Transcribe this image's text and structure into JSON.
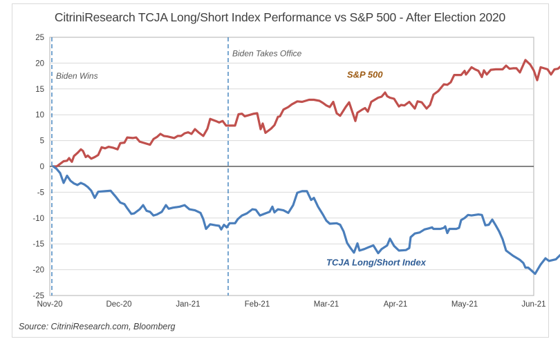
{
  "chart_data": {
    "type": "line",
    "title": "CitriniResearch TCJA Long/Short Index Performance vs S&P 500 - After Election 2020",
    "xlabel": "",
    "ylabel": "",
    "ylim": [
      -25,
      25
    ],
    "yticks": [
      25,
      20,
      15,
      10,
      5,
      0,
      -5,
      -10,
      -15,
      -20,
      -25
    ],
    "x_unit": "months since Nov-20",
    "xlim": [
      0,
      7
    ],
    "xticks": [
      {
        "value": 0,
        "label": "Nov-20"
      },
      {
        "value": 1,
        "label": "Dec-20"
      },
      {
        "value": 2,
        "label": "Jan-21"
      },
      {
        "value": 3,
        "label": "Feb-21"
      },
      {
        "value": 4,
        "label": "Mar-21"
      },
      {
        "value": 5,
        "label": "Apr-21"
      },
      {
        "value": 6,
        "label": "May-21"
      },
      {
        "value": 7,
        "label": "Jun-21"
      }
    ],
    "grid": true,
    "legend": "inline labels",
    "annotations": [
      {
        "x": 0.03,
        "label": "Biden Wins",
        "style": "dashed-vertical"
      },
      {
        "x": 2.58,
        "label": "Biden Takes Office",
        "style": "dashed-vertical"
      }
    ],
    "series": [
      {
        "name": "S&P 500",
        "color": "#c0504d",
        "label_color": "#9c5a12",
        "label_pos": {
          "x": 4.3,
          "y": 17.2
        },
        "points": [
          [
            0.05,
            0
          ],
          [
            0.1,
            0
          ],
          [
            0.15,
            0.5
          ],
          [
            0.2,
            1
          ],
          [
            0.25,
            1.1
          ],
          [
            0.28,
            1.6
          ],
          [
            0.3,
            1.2
          ],
          [
            0.32,
            0.9
          ],
          [
            0.35,
            2
          ],
          [
            0.4,
            2.6
          ],
          [
            0.45,
            3.3
          ],
          [
            0.48,
            3
          ],
          [
            0.52,
            1.8
          ],
          [
            0.55,
            2.1
          ],
          [
            0.6,
            1.5
          ],
          [
            0.65,
            1.8
          ],
          [
            0.7,
            2.2
          ],
          [
            0.75,
            3.7
          ],
          [
            0.8,
            3.5
          ],
          [
            0.85,
            3.8
          ],
          [
            0.92,
            3.6
          ],
          [
            0.98,
            3.3
          ],
          [
            1.02,
            4.5
          ],
          [
            1.08,
            4.6
          ],
          [
            1.12,
            5.6
          ],
          [
            1.2,
            5.5
          ],
          [
            1.25,
            5.6
          ],
          [
            1.3,
            4.8
          ],
          [
            1.35,
            4.6
          ],
          [
            1.45,
            4.2
          ],
          [
            1.5,
            5.3
          ],
          [
            1.55,
            5.7
          ],
          [
            1.6,
            6.3
          ],
          [
            1.65,
            5.9
          ],
          [
            1.7,
            5.8
          ],
          [
            1.8,
            5.5
          ],
          [
            1.85,
            5.9
          ],
          [
            1.9,
            5.9
          ],
          [
            1.95,
            6.4
          ],
          [
            2.0,
            6.6
          ],
          [
            2.05,
            6.3
          ],
          [
            2.1,
            7.2
          ],
          [
            2.15,
            6.6
          ],
          [
            2.22,
            5.9
          ],
          [
            2.28,
            7.3
          ],
          [
            2.32,
            9.2
          ],
          [
            2.4,
            8.8
          ],
          [
            2.45,
            8.5
          ],
          [
            2.5,
            8.8
          ],
          [
            2.55,
            7.9
          ],
          [
            2.62,
            7.9
          ],
          [
            2.68,
            7.9
          ],
          [
            2.73,
            10.1
          ],
          [
            2.78,
            10.2
          ],
          [
            2.82,
            9.7
          ],
          [
            2.9,
            10
          ],
          [
            2.95,
            10.2
          ],
          [
            3.0,
            10.3
          ],
          [
            3.05,
            7.2
          ],
          [
            3.08,
            8.3
          ],
          [
            3.12,
            6.5
          ],
          [
            3.2,
            7.3
          ],
          [
            3.25,
            8
          ],
          [
            3.3,
            9.6
          ],
          [
            3.33,
            9.7
          ],
          [
            3.38,
            11
          ],
          [
            3.45,
            11.5
          ],
          [
            3.5,
            12
          ],
          [
            3.58,
            12.6
          ],
          [
            3.65,
            12.5
          ],
          [
            3.7,
            12.7
          ],
          [
            3.75,
            12.9
          ],
          [
            3.82,
            12.9
          ],
          [
            3.9,
            12.7
          ],
          [
            3.95,
            12.3
          ],
          [
            4.0,
            11.8
          ],
          [
            4.05,
            11.5
          ],
          [
            4.1,
            12.5
          ],
          [
            4.15,
            10.3
          ],
          [
            4.2,
            9.8
          ],
          [
            4.28,
            11.5
          ],
          [
            4.33,
            12.4
          ],
          [
            4.38,
            10.4
          ],
          [
            4.42,
            8.8
          ],
          [
            4.45,
            10.4
          ],
          [
            4.52,
            11
          ],
          [
            4.56,
            11.3
          ],
          [
            4.6,
            10.6
          ],
          [
            4.65,
            12.5
          ],
          [
            4.7,
            12.9
          ],
          [
            4.75,
            13.3
          ],
          [
            4.8,
            13.5
          ],
          [
            4.85,
            14.3
          ],
          [
            4.88,
            13.6
          ],
          [
            4.92,
            13.3
          ],
          [
            4.98,
            13.1
          ],
          [
            5.05,
            11.6
          ],
          [
            5.08,
            11.9
          ],
          [
            5.13,
            11.8
          ],
          [
            5.2,
            12.5
          ],
          [
            5.28,
            11.2
          ],
          [
            5.32,
            12.6
          ],
          [
            5.38,
            12.4
          ],
          [
            5.45,
            11.2
          ],
          [
            5.5,
            11.9
          ],
          [
            5.55,
            13.9
          ],
          [
            5.62,
            14.6
          ],
          [
            5.7,
            15.9
          ],
          [
            5.75,
            15.8
          ],
          [
            5.8,
            16.3
          ],
          [
            5.85,
            17.7
          ],
          [
            5.95,
            17.7
          ],
          [
            6.0,
            18.5
          ],
          [
            6.02,
            17.8
          ],
          [
            6.05,
            18.3
          ],
          [
            6.1,
            19.2
          ],
          [
            6.15,
            18.8
          ],
          [
            6.2,
            18.5
          ],
          [
            6.25,
            17.3
          ],
          [
            6.28,
            18.6
          ],
          [
            6.32,
            17.8
          ],
          [
            6.38,
            18.7
          ],
          [
            6.45,
            18.8
          ],
          [
            6.55,
            18.8
          ],
          [
            6.6,
            19.5
          ],
          [
            6.65,
            18.9
          ],
          [
            6.7,
            19
          ],
          [
            6.75,
            19
          ],
          [
            6.8,
            18.2
          ],
          [
            6.88,
            20.6
          ],
          [
            6.95,
            19.7
          ],
          [
            7.0,
            18.6
          ],
          [
            7.05,
            16.7
          ],
          [
            7.1,
            19.2
          ],
          [
            7.2,
            18.8
          ],
          [
            7.25,
            17.8
          ],
          [
            7.3,
            18.8
          ],
          [
            7.35,
            18.9
          ],
          [
            7.45,
            20.1
          ],
          [
            7.5,
            19.8
          ],
          [
            7.58,
            20.3
          ],
          [
            7.7,
            20.3
          ],
          [
            7.75,
            20.3
          ]
        ]
      },
      {
        "name": "TCJA Long/Short Index",
        "color": "#4a7ebb",
        "label_color": "#2f5d96",
        "label_pos": {
          "x": 4.0,
          "y": -19.2
        },
        "points": [
          [
            0.05,
            0
          ],
          [
            0.1,
            -0.5
          ],
          [
            0.15,
            -1.3
          ],
          [
            0.2,
            -3.2
          ],
          [
            0.25,
            -1.8
          ],
          [
            0.3,
            -2.8
          ],
          [
            0.35,
            -3.3
          ],
          [
            0.4,
            -3.6
          ],
          [
            0.45,
            -3.2
          ],
          [
            0.5,
            -3.5
          ],
          [
            0.55,
            -4
          ],
          [
            0.6,
            -4.7
          ],
          [
            0.65,
            -6.1
          ],
          [
            0.7,
            -4.9
          ],
          [
            0.8,
            -4.8
          ],
          [
            0.88,
            -4.7
          ],
          [
            0.95,
            -5.8
          ],
          [
            1.02,
            -7
          ],
          [
            1.08,
            -7.3
          ],
          [
            1.12,
            -8.1
          ],
          [
            1.18,
            -9.2
          ],
          [
            1.22,
            -9.1
          ],
          [
            1.3,
            -8.3
          ],
          [
            1.35,
            -7.5
          ],
          [
            1.4,
            -8.6
          ],
          [
            1.45,
            -8.8
          ],
          [
            1.5,
            -9.5
          ],
          [
            1.55,
            -9.3
          ],
          [
            1.62,
            -8.8
          ],
          [
            1.68,
            -7.5
          ],
          [
            1.72,
            -8.2
          ],
          [
            1.78,
            -8
          ],
          [
            1.88,
            -7.8
          ],
          [
            1.95,
            -7.5
          ],
          [
            2.02,
            -8.3
          ],
          [
            2.1,
            -8.5
          ],
          [
            2.18,
            -9
          ],
          [
            2.22,
            -10.2
          ],
          [
            2.26,
            -12.1
          ],
          [
            2.32,
            -11.2
          ],
          [
            2.4,
            -11.4
          ],
          [
            2.45,
            -11.5
          ],
          [
            2.48,
            -12.2
          ],
          [
            2.52,
            -11.3
          ],
          [
            2.56,
            -11.8
          ],
          [
            2.6,
            -11
          ],
          [
            2.68,
            -11
          ],
          [
            2.72,
            -10.2
          ],
          [
            2.78,
            -9.5
          ],
          [
            2.85,
            -9.1
          ],
          [
            2.93,
            -8.3
          ],
          [
            2.98,
            -8.4
          ],
          [
            3.04,
            -9.5
          ],
          [
            3.1,
            -9.2
          ],
          [
            3.18,
            -8.8
          ],
          [
            3.22,
            -7.8
          ],
          [
            3.25,
            -8.9
          ],
          [
            3.3,
            -8.3
          ],
          [
            3.38,
            -8.5
          ],
          [
            3.45,
            -9
          ],
          [
            3.52,
            -7.5
          ],
          [
            3.58,
            -5.1
          ],
          [
            3.65,
            -4.8
          ],
          [
            3.72,
            -4.8
          ],
          [
            3.78,
            -6.5
          ],
          [
            3.82,
            -6.1
          ],
          [
            3.88,
            -7.8
          ],
          [
            3.95,
            -9.3
          ],
          [
            4.0,
            -10.5
          ],
          [
            4.05,
            -11.1
          ],
          [
            4.15,
            -11
          ],
          [
            4.2,
            -11.3
          ],
          [
            4.25,
            -12.6
          ],
          [
            4.3,
            -14.8
          ],
          [
            4.35,
            -15.8
          ],
          [
            4.4,
            -16.7
          ],
          [
            4.45,
            -14.9
          ],
          [
            4.48,
            -16.3
          ],
          [
            4.55,
            -16
          ],
          [
            4.62,
            -15.6
          ],
          [
            4.68,
            -15.3
          ],
          [
            4.75,
            -16.8
          ],
          [
            4.8,
            -16
          ],
          [
            4.88,
            -15.3
          ],
          [
            4.92,
            -14
          ],
          [
            4.98,
            -15.4
          ],
          [
            5.05,
            -16.3
          ],
          [
            5.15,
            -16.2
          ],
          [
            5.2,
            -15.8
          ],
          [
            5.22,
            -13.7
          ],
          [
            5.28,
            -13
          ],
          [
            5.35,
            -12.8
          ],
          [
            5.42,
            -12.2
          ],
          [
            5.48,
            -12
          ],
          [
            5.53,
            -11.8
          ],
          [
            5.55,
            -12.1
          ],
          [
            5.65,
            -12.1
          ],
          [
            5.7,
            -11.9
          ],
          [
            5.72,
            -11.6
          ],
          [
            5.75,
            -12.9
          ],
          [
            5.78,
            -12.1
          ],
          [
            5.88,
            -12.1
          ],
          [
            5.92,
            -11.9
          ],
          [
            5.95,
            -10.4
          ],
          [
            6.0,
            -10
          ],
          [
            6.05,
            -9.4
          ],
          [
            6.1,
            -9.5
          ],
          [
            6.2,
            -9.3
          ],
          [
            6.25,
            -9.4
          ],
          [
            6.3,
            -11.4
          ],
          [
            6.35,
            -11.3
          ],
          [
            6.4,
            -10.3
          ],
          [
            6.45,
            -11.4
          ],
          [
            6.5,
            -12.6
          ],
          [
            6.55,
            -14.1
          ],
          [
            6.6,
            -16.3
          ],
          [
            6.7,
            -17.3
          ],
          [
            6.8,
            -18.1
          ],
          [
            6.85,
            -18.7
          ],
          [
            6.88,
            -19.6
          ],
          [
            6.92,
            -19.6
          ],
          [
            7.02,
            -20.8
          ],
          [
            7.1,
            -19
          ],
          [
            7.17,
            -17.8
          ],
          [
            7.22,
            -18.3
          ],
          [
            7.32,
            -18
          ],
          [
            7.35,
            -17.6
          ],
          [
            7.42,
            -16.7
          ],
          [
            7.45,
            -16.9
          ],
          [
            7.5,
            -16.1
          ],
          [
            7.6,
            -16.1
          ],
          [
            7.65,
            -16.2
          ],
          [
            7.7,
            -17.6
          ]
        ]
      }
    ]
  },
  "footer": {
    "source": "Source: CitriniResearch.com, Bloomberg"
  }
}
